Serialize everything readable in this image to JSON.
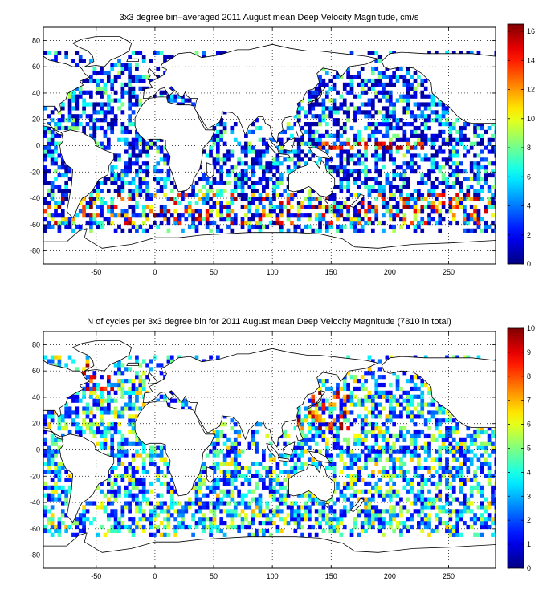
{
  "chart_data": [
    {
      "type": "heatmap",
      "title": "3x3 degree bin–averaged 2011 August mean Deep Velocity Magnitude, cm/s",
      "xlabel": "",
      "ylabel": "",
      "xlim": [
        -95,
        290
      ],
      "ylim": [
        -90,
        90
      ],
      "xticks": [
        -50,
        0,
        50,
        100,
        150,
        200,
        250
      ],
      "yticks": [
        80,
        60,
        40,
        20,
        0,
        -20,
        -40,
        -60,
        -80
      ],
      "grid": true,
      "colorbar": {
        "colormap": "jet",
        "min": 0,
        "max": 16.5,
        "ticks": [
          0,
          2,
          4,
          6,
          8,
          10,
          12,
          14,
          16
        ],
        "placement": "right"
      },
      "bin_size_deg": 3
    },
    {
      "type": "heatmap",
      "title": "N of cycles per 3x3 degree bin for 2011 August mean Deep Velocity Magnitude (7810 in total)",
      "xlabel": "",
      "ylabel": "",
      "xlim": [
        -95,
        290
      ],
      "ylim": [
        -90,
        90
      ],
      "xticks": [
        -50,
        0,
        50,
        100,
        150,
        200,
        250
      ],
      "yticks": [
        80,
        60,
        40,
        20,
        0,
        -20,
        -40,
        -60,
        -80
      ],
      "grid": true,
      "colorbar": {
        "colormap": "jet",
        "min": 0,
        "max": 10,
        "ticks": [
          0,
          1,
          2,
          3,
          4,
          5,
          6,
          7,
          8,
          9,
          10
        ],
        "placement": "right"
      },
      "bin_size_deg": 3
    }
  ]
}
